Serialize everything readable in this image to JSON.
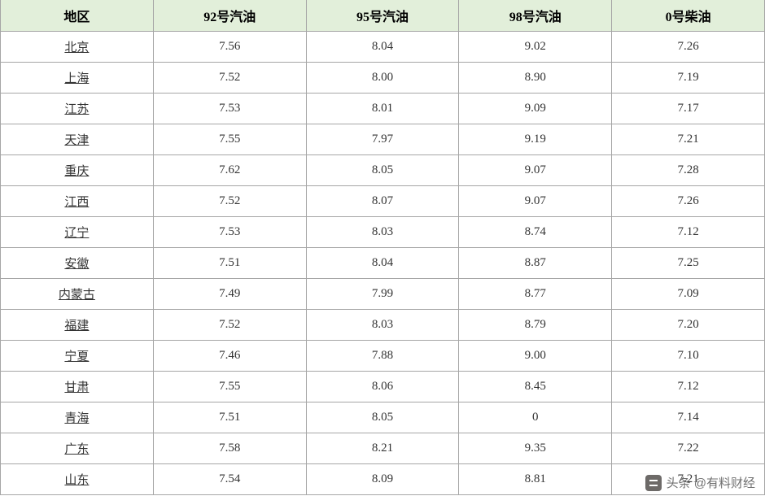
{
  "table": {
    "columns": [
      "地区",
      "92号汽油",
      "95号汽油",
      "98号汽油",
      "0号柴油"
    ],
    "column_widths": [
      "20%",
      "20%",
      "20%",
      "20%",
      "20%"
    ],
    "header_bg": "#e2efda",
    "header_fontsize": 16,
    "cell_fontsize": 15,
    "border_color": "#a6a6a6",
    "text_color": "#333333",
    "rows": [
      {
        "region": "北京",
        "p92": "7.56",
        "p95": "8.04",
        "p98": "9.02",
        "d0": "7.26"
      },
      {
        "region": "上海",
        "p92": "7.52",
        "p95": "8.00",
        "p98": "8.90",
        "d0": "7.19"
      },
      {
        "region": "江苏",
        "p92": "7.53",
        "p95": "8.01",
        "p98": "9.09",
        "d0": "7.17"
      },
      {
        "region": "天津",
        "p92": "7.55",
        "p95": "7.97",
        "p98": "9.19",
        "d0": "7.21"
      },
      {
        "region": "重庆",
        "p92": "7.62",
        "p95": "8.05",
        "p98": "9.07",
        "d0": "7.28"
      },
      {
        "region": "江西",
        "p92": "7.52",
        "p95": "8.07",
        "p98": "9.07",
        "d0": "7.26"
      },
      {
        "region": "辽宁",
        "p92": "7.53",
        "p95": "8.03",
        "p98": "8.74",
        "d0": "7.12"
      },
      {
        "region": "安徽",
        "p92": "7.51",
        "p95": "8.04",
        "p98": "8.87",
        "d0": "7.25"
      },
      {
        "region": "内蒙古",
        "p92": "7.49",
        "p95": "7.99",
        "p98": "8.77",
        "d0": "7.09"
      },
      {
        "region": "福建",
        "p92": "7.52",
        "p95": "8.03",
        "p98": "8.79",
        "d0": "7.20"
      },
      {
        "region": "宁夏",
        "p92": "7.46",
        "p95": "7.88",
        "p98": "9.00",
        "d0": "7.10"
      },
      {
        "region": "甘肃",
        "p92": "7.55",
        "p95": "8.06",
        "p98": "8.45",
        "d0": "7.12"
      },
      {
        "region": "青海",
        "p92": "7.51",
        "p95": "8.05",
        "p98": "0",
        "d0": "7.14"
      },
      {
        "region": "广东",
        "p92": "7.58",
        "p95": "8.21",
        "p98": "9.35",
        "d0": "7.22"
      },
      {
        "region": "山东",
        "p92": "7.54",
        "p95": "8.09",
        "p98": "8.81",
        "d0": "7.21"
      }
    ]
  },
  "watermark": {
    "text": "头条 @有料财经",
    "color": "#565656",
    "icon_bg": "#54514e"
  }
}
